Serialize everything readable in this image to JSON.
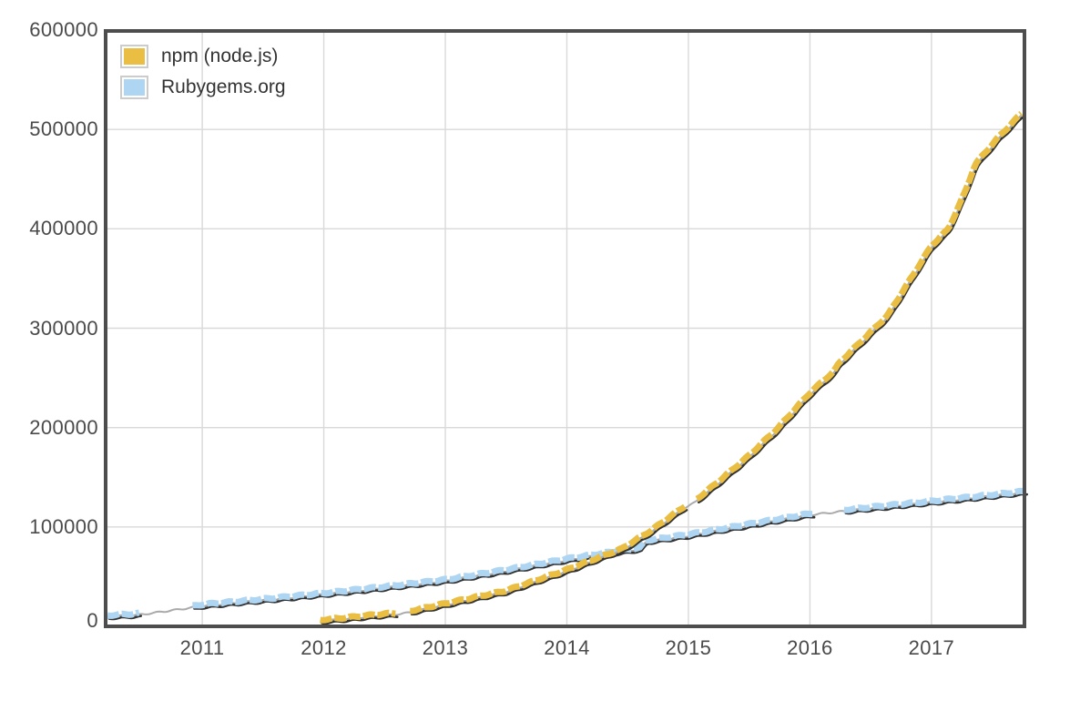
{
  "chart_data": {
    "type": "line",
    "title": "",
    "xlabel": "",
    "ylabel": "",
    "xlim": [
      2010.22,
      2017.78
    ],
    "ylim": [
      0,
      600000
    ],
    "x_ticks": [
      2011,
      2012,
      2013,
      2014,
      2015,
      2016,
      2017
    ],
    "y_ticks": [
      0,
      100000,
      200000,
      300000,
      400000,
      500000,
      600000
    ],
    "grid": true,
    "legend_position": "top-left",
    "series": [
      {
        "name": "npm (node.js)",
        "color": "#e9be42",
        "points": [
          [
            2011.97,
            6500
          ],
          [
            2012.2,
            9000
          ],
          [
            2012.4,
            11500
          ],
          [
            2012.6,
            13500
          ],
          [
            2012.69,
            15000
          ],
          [
            2013.0,
            23000
          ],
          [
            2013.5,
            36000
          ],
          [
            2014.0,
            57000
          ],
          [
            2014.45,
            78000
          ],
          [
            2014.7,
            97000
          ],
          [
            2014.97,
            121000
          ],
          [
            2015.05,
            126000
          ],
          [
            2015.26,
            147000
          ],
          [
            2015.5,
            172000
          ],
          [
            2015.74,
            200000
          ],
          [
            2016.0,
            235000
          ],
          [
            2016.2,
            257000
          ],
          [
            2016.24,
            265000
          ],
          [
            2016.64,
            313000
          ],
          [
            2017.0,
            383000
          ],
          [
            2017.14,
            400000
          ],
          [
            2017.28,
            438000
          ],
          [
            2017.36,
            465000
          ],
          [
            2017.55,
            492000
          ],
          [
            2017.74,
            516000
          ]
        ],
        "gaps": [
          [
            2012.6,
            2012.69
          ],
          [
            2014.97,
            2015.05
          ]
        ]
      },
      {
        "name": "Rubygems.org",
        "color": "#aed6f2",
        "points": [
          [
            2010.22,
            11000
          ],
          [
            2010.48,
            13000
          ],
          [
            2010.9,
            20000
          ],
          [
            2011.0,
            22000
          ],
          [
            2011.5,
            27500
          ],
          [
            2012.0,
            33500
          ],
          [
            2012.5,
            40000
          ],
          [
            2013.0,
            47000
          ],
          [
            2013.5,
            57000
          ],
          [
            2014.0,
            68000
          ],
          [
            2014.45,
            76500
          ],
          [
            2014.6,
            79000
          ],
          [
            2014.65,
            86500
          ],
          [
            2015.0,
            92500
          ],
          [
            2015.5,
            103000
          ],
          [
            2016.0,
            113500
          ],
          [
            2016.26,
            117000
          ],
          [
            2016.5,
            120000
          ],
          [
            2017.0,
            126000
          ],
          [
            2017.77,
            136000
          ]
        ],
        "gaps": [
          [
            2010.48,
            2010.9
          ],
          [
            2016.02,
            2016.26
          ]
        ]
      }
    ]
  },
  "style": {
    "background": "#ffffff",
    "grid_color": "#d9d9d9",
    "border_color": "#4d4d4d",
    "tick_label_color": "#4a4a4a",
    "legend_text_color": "#333333",
    "shadow_line_color": "#333333",
    "base_line_color": "#aaaaaa",
    "swatch_border_color": "#cccccc"
  }
}
